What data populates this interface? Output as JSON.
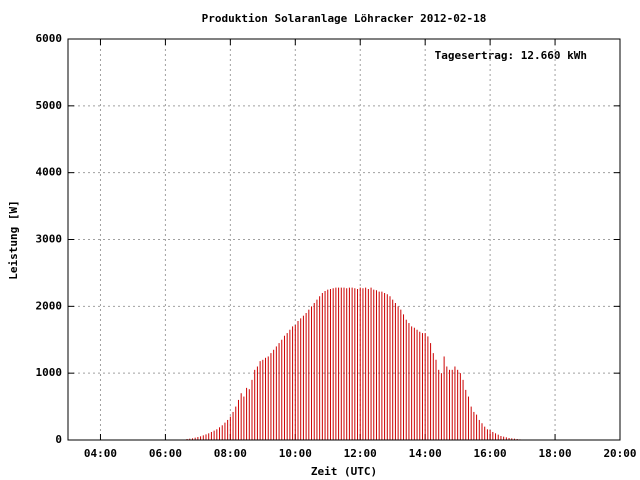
{
  "chart_data": {
    "type": "impulse",
    "title": "Produktion Solaranlage Löhracker 2012-02-18",
    "annotation": "Tagesertrag: 12.660 kWh",
    "xlabel": "Zeit (UTC)",
    "ylabel": "Leistung [W]",
    "color": "#cc0000",
    "grid": true,
    "xlim": [
      180,
      1200
    ],
    "xticks": [
      {
        "value": 240,
        "label": "04:00"
      },
      {
        "value": 360,
        "label": "06:00"
      },
      {
        "value": 480,
        "label": "08:00"
      },
      {
        "value": 600,
        "label": "10:00"
      },
      {
        "value": 720,
        "label": "12:00"
      },
      {
        "value": 840,
        "label": "14:00"
      },
      {
        "value": 960,
        "label": "16:00"
      },
      {
        "value": 1080,
        "label": "18:00"
      },
      {
        "value": 1200,
        "label": "20:00"
      }
    ],
    "ylim": [
      0,
      6000
    ],
    "yticks": [
      0,
      1000,
      2000,
      3000,
      4000,
      5000,
      6000
    ],
    "x": [
      400,
      405,
      410,
      415,
      420,
      425,
      430,
      435,
      440,
      445,
      450,
      455,
      460,
      465,
      470,
      475,
      480,
      485,
      490,
      495,
      500,
      505,
      510,
      515,
      520,
      525,
      530,
      535,
      540,
      545,
      550,
      555,
      560,
      565,
      570,
      575,
      580,
      585,
      590,
      595,
      600,
      605,
      610,
      615,
      620,
      625,
      630,
      635,
      640,
      645,
      650,
      655,
      660,
      665,
      670,
      675,
      680,
      685,
      690,
      695,
      700,
      705,
      710,
      715,
      720,
      725,
      730,
      735,
      740,
      745,
      750,
      755,
      760,
      765,
      770,
      775,
      780,
      785,
      790,
      795,
      800,
      805,
      810,
      815,
      820,
      825,
      830,
      835,
      840,
      845,
      850,
      855,
      860,
      865,
      870,
      875,
      880,
      885,
      890,
      895,
      900,
      905,
      910,
      915,
      920,
      925,
      930,
      935,
      940,
      945,
      950,
      955,
      960,
      965,
      970,
      975,
      980,
      985,
      990,
      995,
      1000,
      1005,
      1010,
      1015
    ],
    "values": [
      15,
      20,
      25,
      35,
      45,
      55,
      70,
      85,
      100,
      120,
      140,
      160,
      190,
      220,
      260,
      300,
      350,
      420,
      500,
      600,
      700,
      650,
      780,
      760,
      900,
      1050,
      1100,
      1180,
      1200,
      1230,
      1250,
      1300,
      1350,
      1400,
      1450,
      1500,
      1560,
      1600,
      1650,
      1700,
      1720,
      1780,
      1820,
      1860,
      1900,
      1950,
      2000,
      2050,
      2100,
      2150,
      2200,
      2230,
      2250,
      2260,
      2270,
      2280,
      2280,
      2280,
      2280,
      2270,
      2280,
      2280,
      2270,
      2260,
      2280,
      2270,
      2280,
      2260,
      2280,
      2250,
      2240,
      2220,
      2220,
      2200,
      2180,
      2150,
      2100,
      2050,
      2000,
      1950,
      1880,
      1800,
      1750,
      1700,
      1680,
      1650,
      1620,
      1600,
      1600,
      1550,
      1450,
      1300,
      1200,
      1050,
      1000,
      1250,
      1100,
      1050,
      1050,
      1100,
      1050,
      1000,
      900,
      750,
      650,
      500,
      420,
      380,
      300,
      250,
      200,
      160,
      150,
      120,
      100,
      80,
      60,
      50,
      40,
      30,
      25,
      20,
      15,
      10
    ]
  }
}
